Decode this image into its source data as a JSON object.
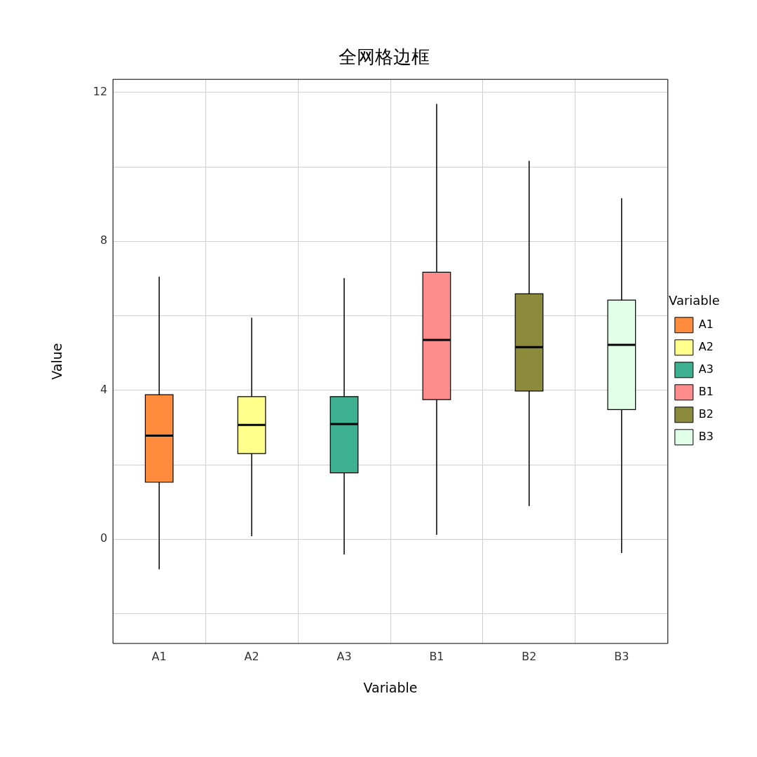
{
  "chart_data": {
    "type": "box",
    "title": "全网格边框",
    "xlabel": "Variable",
    "ylabel": "Value",
    "legend_title": "Variable",
    "categories": [
      "A1",
      "A2",
      "A3",
      "B1",
      "B2",
      "B3"
    ],
    "series": [
      {
        "name": "A1",
        "color": "#ff8c3d",
        "boxes": [
          {
            "low": -0.81,
            "q1": 1.53,
            "median": 2.78,
            "q3": 3.88,
            "high": 7.05
          },
          null,
          null,
          null,
          null,
          null
        ]
      },
      {
        "name": "A2",
        "color": "#ffff8c",
        "boxes": [
          null,
          {
            "low": 0.08,
            "q1": 2.3,
            "median": 3.07,
            "q3": 3.83,
            "high": 5.95
          },
          null,
          null,
          null,
          null
        ]
      },
      {
        "name": "A3",
        "color": "#3cb08f",
        "boxes": [
          null,
          null,
          {
            "low": -0.41,
            "q1": 1.78,
            "median": 3.09,
            "q3": 3.83,
            "high": 7.01
          },
          null,
          null,
          null
        ]
      },
      {
        "name": "B1",
        "color": "#ff8c8c",
        "boxes": [
          null,
          null,
          null,
          {
            "low": 0.12,
            "q1": 3.75,
            "median": 5.35,
            "q3": 7.17,
            "high": 11.69
          },
          null,
          null
        ]
      },
      {
        "name": "B2",
        "color": "#8b8b3b",
        "boxes": [
          null,
          null,
          null,
          null,
          {
            "low": 0.89,
            "q1": 3.98,
            "median": 5.16,
            "q3": 6.59,
            "high": 10.16
          },
          null
        ]
      },
      {
        "name": "B3",
        "color": "#e0ffe6",
        "boxes": [
          null,
          null,
          null,
          null,
          null,
          {
            "low": -0.37,
            "q1": 3.48,
            "median": 5.22,
            "q3": 6.42,
            "high": 9.16
          }
        ]
      }
    ],
    "ylim": [
      -2.8,
      12.35
    ],
    "yticks": [
      {
        "value": -2,
        "label": null
      },
      0,
      {
        "value": 2,
        "label": null
      },
      4,
      {
        "value": 6,
        "label": null
      },
      8,
      {
        "value": 10,
        "label": null
      },
      12
    ],
    "grid": true,
    "legend": "right"
  }
}
